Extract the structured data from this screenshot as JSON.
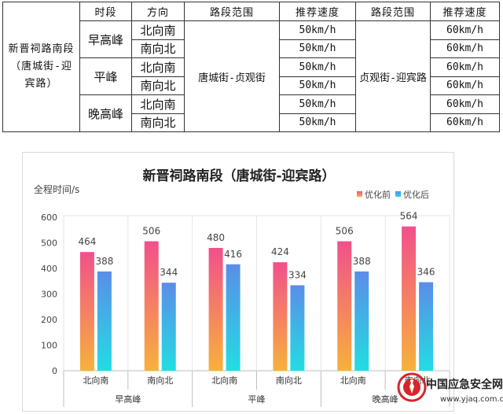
{
  "table": {
    "section": "新晋祠路南段（唐城街-迎宾路）",
    "headers": {
      "period": "时段",
      "direction": "方向",
      "range": "路段范围",
      "speed": "推荐速度",
      "range2": "路段范围",
      "speed2": "推荐速度"
    },
    "range_a": "唐城街-贞观街",
    "range_b": "贞观街-迎宾路",
    "periods": [
      "早高峰",
      "平峰",
      "晚高峰"
    ],
    "rows": [
      {
        "direction": "北向南",
        "speed_a": "50km/h",
        "speed_b": "60km/h"
      },
      {
        "direction": "南向北",
        "speed_a": "50km/h",
        "speed_b": "60km/h"
      },
      {
        "direction": "北向南",
        "speed_a": "50km/h",
        "speed_b": "60km/h"
      },
      {
        "direction": "南向北",
        "speed_a": "50km/h",
        "speed_b": "60km/h"
      },
      {
        "direction": "北向南",
        "speed_a": "50km/h",
        "speed_b": "60km/h"
      },
      {
        "direction": "南向北",
        "speed_a": "50km/h",
        "speed_b": "60km/h"
      }
    ]
  },
  "chart_data": {
    "type": "bar",
    "title": "新晋祠路南段（唐城街-迎宾路）",
    "ylabel": "全程时间/s",
    "xlabel": "",
    "ylim": [
      0,
      600
    ],
    "yticks": [
      0,
      100,
      200,
      300,
      400,
      500,
      600
    ],
    "categories": [
      "北向南",
      "南向北",
      "北向南",
      "南向北",
      "北向南",
      "南向北"
    ],
    "groups": [
      "早高峰",
      "平峰",
      "晚高峰"
    ],
    "series": [
      {
        "name": "优化前",
        "values": [
          464,
          506,
          480,
          424,
          506,
          564
        ]
      },
      {
        "name": "优化后",
        "values": [
          388,
          344,
          416,
          334,
          388,
          346
        ]
      }
    ],
    "legend": "top-right",
    "grid": false,
    "colors": {
      "before_top": "#f2508c",
      "before_bottom": "#f7b13b",
      "after_top": "#5b8de8",
      "after_bottom": "#22dde3"
    }
  },
  "watermark": {
    "title": "中国应急安全网",
    "url": "www.yjaq.com.cn",
    "logo": "emergency-safety-logo",
    "logo_color": "#d6262b"
  }
}
